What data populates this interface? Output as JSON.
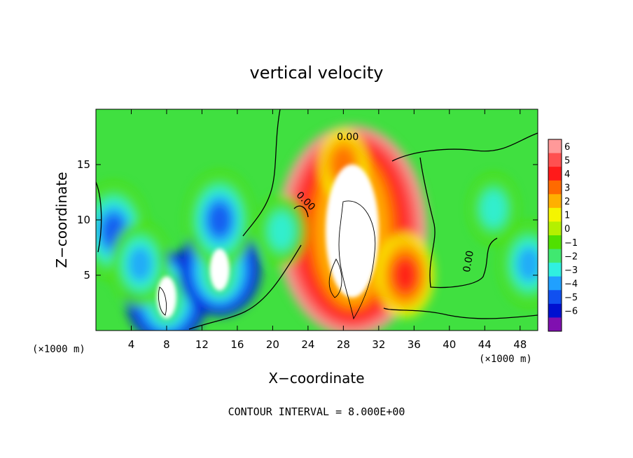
{
  "chart_data": {
    "type": "heatmap",
    "title": "vertical velocity",
    "xlabel": "X−coordinate",
    "ylabel": "Z−coordinate",
    "x_unit_left": "(×1000 m)",
    "x_unit_right": "(×1000 m)",
    "footer": "CONTOUR INTERVAL = 8.000E+00",
    "xlim": [
      0,
      50
    ],
    "ylim": [
      0,
      20
    ],
    "x_ticks": [
      "4",
      "8",
      "12",
      "16",
      "20",
      "24",
      "28",
      "32",
      "36",
      "40",
      "44",
      "48"
    ],
    "y_ticks": [
      "5",
      "10",
      "15"
    ],
    "colorbar_labels": [
      "6",
      "5",
      "4",
      "3",
      "2",
      "1",
      "0",
      "−1",
      "−2",
      "−3",
      "−4",
      "−5",
      "−6"
    ],
    "colorbar_colors": [
      "#ff9999",
      "#ff5050",
      "#ff1a1a",
      "#ff6a00",
      "#ffb000",
      "#f5f500",
      "#b4f000",
      "#50e000",
      "#40e870",
      "#30f0e0",
      "#20a0ff",
      "#1050f0",
      "#0010d0",
      "#8010b0"
    ],
    "contour_labels": [
      "0.00",
      "0.00",
      "0.00"
    ],
    "features": [
      {
        "x": 29,
        "y": 9,
        "value": 8
      },
      {
        "x": 8,
        "y": 3,
        "value": -8
      },
      {
        "x": 14,
        "y": 5.5,
        "value": -8
      },
      {
        "x": 14,
        "y": 10,
        "value": -5
      },
      {
        "x": 2,
        "y": 9,
        "value": -5
      },
      {
        "x": 5,
        "y": 6,
        "value": -4
      },
      {
        "x": 21,
        "y": 9,
        "value": -3
      },
      {
        "x": 45,
        "y": 11,
        "value": -3
      },
      {
        "x": 49,
        "y": 6,
        "value": -4
      },
      {
        "x": 35,
        "y": 5,
        "value": 4
      },
      {
        "x": 28,
        "y": 15,
        "value": 3
      }
    ]
  }
}
